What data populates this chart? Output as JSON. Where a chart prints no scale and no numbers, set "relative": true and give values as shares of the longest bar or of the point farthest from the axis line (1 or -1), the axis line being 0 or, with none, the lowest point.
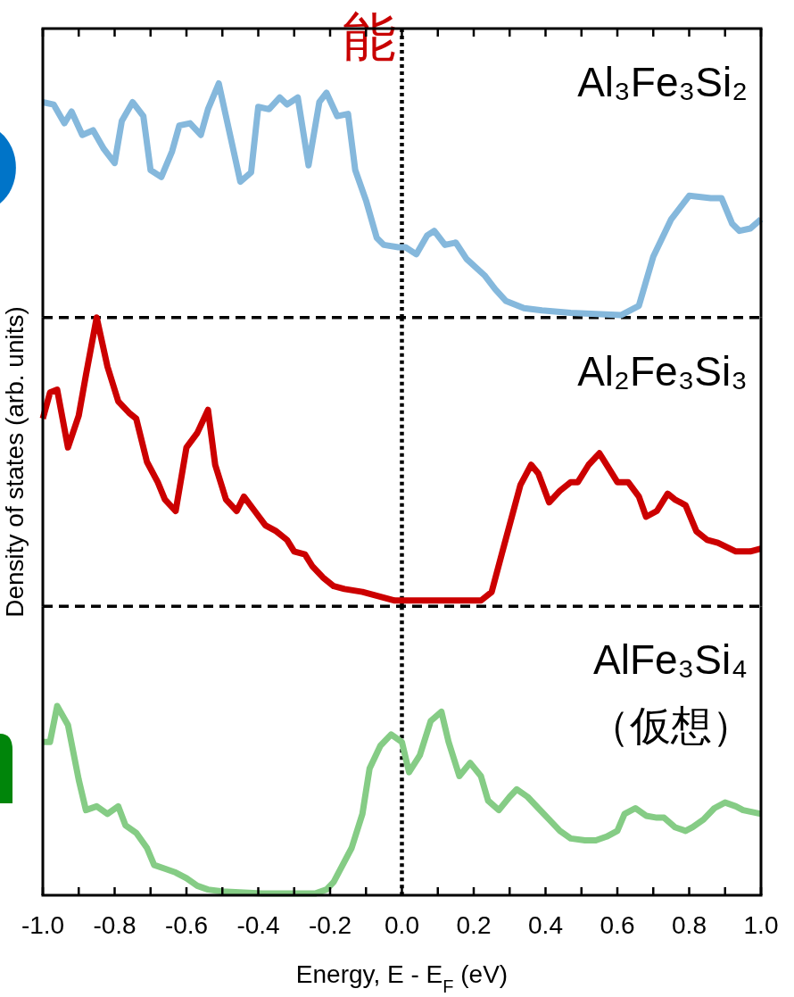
{
  "chart_data": [
    {
      "type": "line",
      "title": "Al₃Fe₃Si₂",
      "relative": true,
      "xlim": [
        -1,
        1
      ],
      "tick_labels": false,
      "ref_lines": [
        {
          "axis": "x",
          "value": 0,
          "label": "能",
          "line_style": "dotted",
          "color": "#000000"
        },
        {
          "axis": "y",
          "value": 0,
          "line_style": "dashed",
          "color": "#000000"
        }
      ],
      "series": [
        {
          "color": "#85b8dc",
          "x": [
            -1.0,
            -0.97,
            -0.94,
            -0.92,
            -0.89,
            -0.86,
            -0.83,
            -0.8,
            -0.78,
            -0.75,
            -0.72,
            -0.7,
            -0.67,
            -0.64,
            -0.62,
            -0.59,
            -0.56,
            -0.54,
            -0.51,
            -0.48,
            -0.45,
            -0.42,
            -0.4,
            -0.37,
            -0.34,
            -0.32,
            -0.29,
            -0.26,
            -0.23,
            -0.21,
            -0.18,
            -0.15,
            -0.13,
            -0.1,
            -0.07,
            -0.05,
            -0.01,
            0.01,
            0.04,
            0.07,
            0.09,
            0.12,
            0.15,
            0.18,
            0.23,
            0.26,
            0.29,
            0.34,
            0.39,
            0.47,
            0.61,
            0.66,
            0.7,
            0.75,
            0.78,
            0.8,
            0.86,
            0.89,
            0.92,
            0.94,
            0.97,
            1.0
          ],
          "values": [
            0.92,
            0.91,
            0.83,
            0.88,
            0.78,
            0.8,
            0.72,
            0.66,
            0.84,
            0.92,
            0.86,
            0.63,
            0.6,
            0.71,
            0.82,
            0.83,
            0.78,
            0.89,
            1.0,
            0.79,
            0.58,
            0.62,
            0.9,
            0.89,
            0.94,
            0.91,
            0.94,
            0.65,
            0.92,
            0.96,
            0.86,
            0.87,
            0.63,
            0.5,
            0.34,
            0.31,
            0.3,
            0.3,
            0.27,
            0.35,
            0.37,
            0.31,
            0.32,
            0.25,
            0.18,
            0.12,
            0.07,
            0.04,
            0.03,
            0.02,
            0.01,
            0.05,
            0.26,
            0.42,
            0.48,
            0.52,
            0.51,
            0.51,
            0.4,
            0.37,
            0.38,
            0.42
          ]
        }
      ]
    },
    {
      "type": "line",
      "title": "Al₂Fe₃Si₃",
      "ylabel": "Density of states (arb. units)",
      "relative": true,
      "xlim": [
        -1,
        1
      ],
      "tick_labels": false,
      "ref_lines": [
        {
          "axis": "x",
          "value": 0,
          "line_style": "dotted",
          "color": "#000000"
        },
        {
          "axis": "y",
          "value": 0,
          "line_style": "dashed",
          "color": "#000000"
        }
      ],
      "series": [
        {
          "color": "#cc0000",
          "x": [
            -1.0,
            -0.98,
            -0.96,
            -0.93,
            -0.9,
            -0.88,
            -0.85,
            -0.82,
            -0.79,
            -0.76,
            -0.74,
            -0.71,
            -0.68,
            -0.66,
            -0.63,
            -0.6,
            -0.57,
            -0.54,
            -0.52,
            -0.49,
            -0.46,
            -0.44,
            -0.41,
            -0.38,
            -0.35,
            -0.32,
            -0.3,
            -0.27,
            -0.25,
            -0.22,
            -0.19,
            -0.16,
            -0.11,
            -0.05,
            -0.02,
            0.22,
            0.25,
            0.28,
            0.33,
            0.36,
            0.38,
            0.41,
            0.44,
            0.47,
            0.49,
            0.52,
            0.55,
            0.58,
            0.6,
            0.63,
            0.66,
            0.68,
            0.71,
            0.74,
            0.76,
            0.79,
            0.82,
            0.85,
            0.88,
            0.93,
            0.97,
            1.0
          ],
          "values": [
            0.65,
            0.74,
            0.75,
            0.55,
            0.66,
            0.8,
            1.0,
            0.83,
            0.71,
            0.67,
            0.65,
            0.5,
            0.43,
            0.37,
            0.33,
            0.55,
            0.6,
            0.68,
            0.49,
            0.37,
            0.33,
            0.38,
            0.33,
            0.28,
            0.26,
            0.23,
            0.19,
            0.18,
            0.14,
            0.1,
            0.07,
            0.06,
            0.05,
            0.03,
            0.02,
            0.02,
            0.05,
            0.19,
            0.42,
            0.49,
            0.46,
            0.36,
            0.4,
            0.43,
            0.43,
            0.49,
            0.53,
            0.47,
            0.43,
            0.43,
            0.38,
            0.31,
            0.33,
            0.39,
            0.37,
            0.35,
            0.26,
            0.23,
            0.22,
            0.19,
            0.19,
            0.2
          ]
        }
      ]
    },
    {
      "type": "line",
      "title": "AlFe₃Si₄",
      "subtitle": "（仮想）",
      "xlabel": "Energy, E - E$_{F}$ (eV)",
      "relative": true,
      "xlim": [
        -1,
        1
      ],
      "tick_labels": "x",
      "xticks": [
        {
          "value": -1,
          "label": "-1.0"
        },
        {
          "value": -0.9,
          "label": null
        },
        {
          "value": -0.8,
          "label": "-0.8"
        },
        {
          "value": -0.7,
          "label": null
        },
        {
          "value": -0.6,
          "label": "-0.6"
        },
        {
          "value": -0.5,
          "label": null
        },
        {
          "value": -0.4,
          "label": "-0.4"
        },
        {
          "value": -0.3,
          "label": null
        },
        {
          "value": -0.2,
          "label": "-0.2"
        },
        {
          "value": -0.1,
          "label": null
        },
        {
          "value": 0,
          "label": "0.0"
        },
        {
          "value": 0.1,
          "label": null
        },
        {
          "value": 0.2,
          "label": "0.2"
        },
        {
          "value": 0.3,
          "label": null
        },
        {
          "value": 0.4,
          "label": "0.4"
        },
        {
          "value": 0.5,
          "label": null
        },
        {
          "value": 0.6,
          "label": "0.6"
        },
        {
          "value": 0.7,
          "label": null
        },
        {
          "value": 0.8,
          "label": "0.8"
        },
        {
          "value": 0.9,
          "label": null
        },
        {
          "value": 1,
          "label": "1.0"
        }
      ],
      "ref_lines": [
        {
          "axis": "x",
          "value": 0,
          "line_style": "dotted",
          "color": "#000000"
        }
      ],
      "series": [
        {
          "color": "#85cc85",
          "x": [
            -1.0,
            -0.98,
            -0.96,
            -0.93,
            -0.9,
            -0.88,
            -0.85,
            -0.82,
            -0.79,
            -0.77,
            -0.74,
            -0.71,
            -0.69,
            -0.66,
            -0.63,
            -0.6,
            -0.57,
            -0.54,
            -0.5,
            -0.39,
            -0.24,
            -0.21,
            -0.19,
            -0.14,
            -0.11,
            -0.09,
            -0.06,
            -0.03,
            0.0,
            0.02,
            0.05,
            0.08,
            0.11,
            0.13,
            0.16,
            0.19,
            0.22,
            0.24,
            0.27,
            0.3,
            0.32,
            0.35,
            0.38,
            0.41,
            0.44,
            0.47,
            0.51,
            0.54,
            0.57,
            0.6,
            0.62,
            0.65,
            0.68,
            0.71,
            0.73,
            0.76,
            0.79,
            0.81,
            0.84,
            0.87,
            0.9,
            0.93,
            0.95,
            1.0
          ],
          "values": [
            0.81,
            0.81,
            1.0,
            0.9,
            0.61,
            0.45,
            0.47,
            0.43,
            0.47,
            0.37,
            0.33,
            0.25,
            0.16,
            0.14,
            0.12,
            0.09,
            0.05,
            0.03,
            0.02,
            0.01,
            0.01,
            0.03,
            0.07,
            0.25,
            0.43,
            0.67,
            0.79,
            0.85,
            0.81,
            0.65,
            0.74,
            0.92,
            0.97,
            0.81,
            0.63,
            0.7,
            0.63,
            0.5,
            0.45,
            0.52,
            0.56,
            0.52,
            0.46,
            0.4,
            0.34,
            0.3,
            0.29,
            0.29,
            0.31,
            0.34,
            0.43,
            0.46,
            0.42,
            0.41,
            0.41,
            0.36,
            0.34,
            0.36,
            0.4,
            0.46,
            0.49,
            0.47,
            0.45,
            0.43
          ]
        }
      ]
    }
  ]
}
